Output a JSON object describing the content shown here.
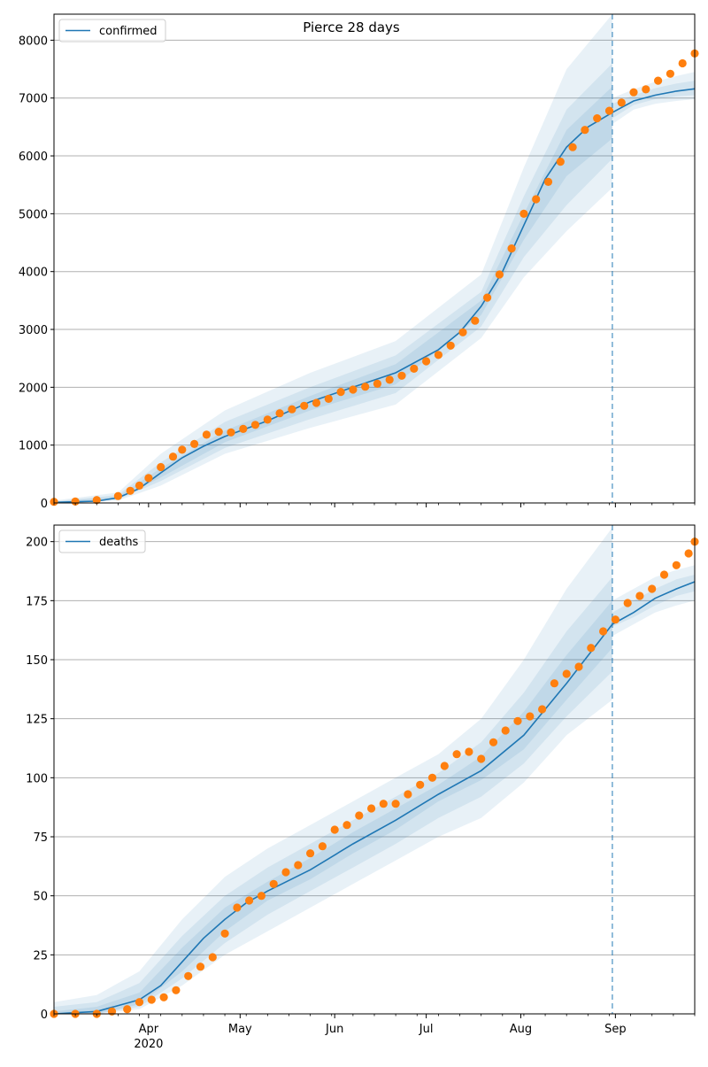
{
  "title": "Pierce 28 days",
  "colors": {
    "model": "#1f77b4",
    "observed": "#ff7f0e",
    "band": "#1f77b4",
    "grid": "#b0b0b0",
    "forecast_line": "#1f77b4"
  },
  "x_axis": {
    "ticks": [
      {
        "label": "Apr",
        "day": 31
      },
      {
        "label": "May",
        "day": 61
      },
      {
        "label": "Jun",
        "day": 92
      },
      {
        "label": "Jul",
        "day": 122
      },
      {
        "label": "Aug",
        "day": 153
      },
      {
        "label": "Sep",
        "day": 184
      }
    ],
    "year_label": "2020",
    "range": [
      "2020-03-01",
      "2020-09-27"
    ],
    "forecast_start": "2020-08-31"
  },
  "chart_data": [
    {
      "type": "line",
      "panel": "top",
      "title": "Pierce 28 days",
      "legend": "confirmed",
      "legend_position": "top-left",
      "grid": "horizontal",
      "ylim": [
        0,
        8450
      ],
      "yticks": [
        0,
        1000,
        2000,
        3000,
        4000,
        5000,
        6000,
        7000,
        8000
      ],
      "model_series": {
        "name": "confirmed",
        "x": [
          "2020-03-01",
          "2020-03-15",
          "2020-03-22",
          "2020-03-29",
          "2020-04-05",
          "2020-04-12",
          "2020-04-19",
          "2020-04-26",
          "2020-05-10",
          "2020-05-24",
          "2020-06-07",
          "2020-06-21",
          "2020-07-05",
          "2020-07-12",
          "2020-07-19",
          "2020-07-26",
          "2020-08-02",
          "2020-08-09",
          "2020-08-16",
          "2020-08-23",
          "2020-08-31",
          "2020-09-07",
          "2020-09-14",
          "2020-09-21",
          "2020-09-27"
        ],
        "values": [
          10,
          30,
          90,
          250,
          520,
          780,
          980,
          1150,
          1420,
          1750,
          2000,
          2250,
          2650,
          2950,
          3400,
          4000,
          4800,
          5600,
          6150,
          6500,
          6750,
          6950,
          7050,
          7120,
          7160
        ]
      },
      "bands": [
        {
          "x": [
            "2020-03-01",
            "2020-03-22",
            "2020-04-05",
            "2020-04-26",
            "2020-05-24",
            "2020-06-21",
            "2020-07-19",
            "2020-08-02",
            "2020-08-16",
            "2020-08-31"
          ],
          "upper": [
            40,
            180,
            850,
            1600,
            2250,
            2800,
            3950,
            5800,
            7500,
            8450
          ],
          "lower": [
            0,
            40,
            300,
            850,
            1300,
            1700,
            2850,
            3900,
            4700,
            5450
          ]
        },
        {
          "x": [
            "2020-03-01",
            "2020-03-22",
            "2020-04-05",
            "2020-04-26",
            "2020-05-24",
            "2020-06-21",
            "2020-07-19",
            "2020-08-02",
            "2020-08-16",
            "2020-08-31"
          ],
          "upper": [
            25,
            140,
            700,
            1400,
            2000,
            2550,
            3650,
            5300,
            6800,
            7600
          ],
          "lower": [
            0,
            60,
            380,
            950,
            1450,
            1900,
            3050,
            4250,
            5150,
            5950
          ]
        },
        {
          "x": [
            "2020-03-01",
            "2020-03-22",
            "2020-04-05",
            "2020-04-26",
            "2020-05-24",
            "2020-06-21",
            "2020-07-19",
            "2020-08-02",
            "2020-08-16",
            "2020-08-31"
          ],
          "upper": [
            15,
            110,
            600,
            1250,
            1850,
            2400,
            3500,
            5000,
            6450,
            7200
          ],
          "lower": [
            0,
            75,
            440,
            1050,
            1600,
            2050,
            3250,
            4550,
            5650,
            6300
          ]
        },
        {
          "x": [
            "2020-08-31",
            "2020-09-07",
            "2020-09-14",
            "2020-09-21",
            "2020-09-27"
          ],
          "upper": [
            7000,
            7150,
            7280,
            7380,
            7450
          ],
          "lower": [
            6550,
            6800,
            6900,
            6950,
            6980
          ]
        },
        {
          "x": [
            "2020-08-31",
            "2020-09-07",
            "2020-09-14",
            "2020-09-21",
            "2020-09-27"
          ],
          "upper": [
            6900,
            7050,
            7170,
            7250,
            7300
          ],
          "lower": [
            6650,
            6880,
            6980,
            7030,
            7050
          ]
        }
      ],
      "observed": {
        "x": [
          "2020-03-01",
          "2020-03-08",
          "2020-03-15",
          "2020-03-22",
          "2020-03-26",
          "2020-03-29",
          "2020-04-01",
          "2020-04-05",
          "2020-04-09",
          "2020-04-12",
          "2020-04-16",
          "2020-04-20",
          "2020-04-24",
          "2020-04-28",
          "2020-05-02",
          "2020-05-06",
          "2020-05-10",
          "2020-05-14",
          "2020-05-18",
          "2020-05-22",
          "2020-05-26",
          "2020-05-30",
          "2020-06-03",
          "2020-06-07",
          "2020-06-11",
          "2020-06-15",
          "2020-06-19",
          "2020-06-23",
          "2020-06-27",
          "2020-07-01",
          "2020-07-05",
          "2020-07-09",
          "2020-07-13",
          "2020-07-17",
          "2020-07-21",
          "2020-07-25",
          "2020-07-29",
          "2020-08-02",
          "2020-08-06",
          "2020-08-10",
          "2020-08-14",
          "2020-08-18",
          "2020-08-22",
          "2020-08-26",
          "2020-08-30",
          "2020-09-03",
          "2020-09-07",
          "2020-09-11",
          "2020-09-15",
          "2020-09-19",
          "2020-09-23",
          "2020-09-27"
        ],
        "values": [
          20,
          25,
          50,
          120,
          210,
          300,
          430,
          620,
          800,
          920,
          1020,
          1180,
          1230,
          1220,
          1280,
          1350,
          1440,
          1550,
          1620,
          1680,
          1730,
          1800,
          1920,
          1960,
          2010,
          2060,
          2130,
          2200,
          2320,
          2450,
          2560,
          2720,
          2950,
          3150,
          3550,
          3950,
          4400,
          5000,
          5250,
          5550,
          5900,
          6150,
          6450,
          6650,
          6780,
          6920,
          7100,
          7150,
          7300,
          7420,
          7600,
          7770
        ]
      }
    },
    {
      "type": "line",
      "panel": "bottom",
      "legend": "deaths",
      "legend_position": "top-left",
      "grid": "horizontal",
      "ylim": [
        0,
        207
      ],
      "yticks": [
        0,
        25,
        50,
        75,
        100,
        125,
        150,
        175,
        200
      ],
      "model_series": {
        "name": "deaths",
        "x": [
          "2020-03-01",
          "2020-03-15",
          "2020-03-29",
          "2020-04-05",
          "2020-04-12",
          "2020-04-19",
          "2020-04-26",
          "2020-05-03",
          "2020-05-10",
          "2020-05-24",
          "2020-06-07",
          "2020-06-21",
          "2020-07-05",
          "2020-07-19",
          "2020-08-02",
          "2020-08-16",
          "2020-08-31",
          "2020-09-07",
          "2020-09-14",
          "2020-09-21",
          "2020-09-27"
        ],
        "values": [
          0,
          1,
          6,
          12,
          22,
          32,
          40,
          47,
          52,
          61,
          72,
          82,
          93,
          103,
          118,
          140,
          165,
          170,
          176,
          180,
          183
        ]
      },
      "bands": [
        {
          "x": [
            "2020-03-01",
            "2020-03-15",
            "2020-03-29",
            "2020-04-12",
            "2020-04-26",
            "2020-05-10",
            "2020-05-24",
            "2020-06-07",
            "2020-06-21",
            "2020-07-05",
            "2020-07-19",
            "2020-08-02",
            "2020-08-16",
            "2020-08-31"
          ],
          "upper": [
            5,
            8,
            18,
            40,
            58,
            70,
            80,
            90,
            100,
            110,
            125,
            150,
            180,
            206
          ],
          "lower": [
            0,
            0,
            2,
            12,
            25,
            35,
            45,
            55,
            65,
            75,
            83,
            98,
            118,
            133
          ]
        },
        {
          "x": [
            "2020-03-01",
            "2020-03-15",
            "2020-03-29",
            "2020-04-12",
            "2020-04-26",
            "2020-05-10",
            "2020-05-24",
            "2020-06-07",
            "2020-06-21",
            "2020-07-05",
            "2020-07-19",
            "2020-08-02",
            "2020-08-16",
            "2020-08-31"
          ],
          "upper": [
            3,
            5,
            13,
            33,
            50,
            62,
            72,
            82,
            92,
            102,
            115,
            136,
            162,
            185
          ],
          "lower": [
            0,
            0,
            3,
            15,
            30,
            42,
            52,
            62,
            72,
            83,
            92,
            106,
            126,
            145
          ]
        },
        {
          "x": [
            "2020-03-01",
            "2020-03-15",
            "2020-03-29",
            "2020-04-12",
            "2020-04-26",
            "2020-05-10",
            "2020-05-24",
            "2020-06-07",
            "2020-06-21",
            "2020-07-05",
            "2020-07-19",
            "2020-08-02",
            "2020-08-16",
            "2020-08-31"
          ],
          "upper": [
            1,
            3,
            9,
            28,
            45,
            56,
            66,
            77,
            87,
            97,
            109,
            128,
            152,
            175
          ],
          "lower": [
            0,
            0,
            4,
            18,
            35,
            48,
            57,
            68,
            78,
            90,
            99,
            112,
            133,
            155
          ]
        },
        {
          "x": [
            "2020-08-31",
            "2020-09-07",
            "2020-09-14",
            "2020-09-21",
            "2020-09-27"
          ],
          "upper": [
            175,
            180,
            185,
            188,
            190
          ],
          "lower": [
            160,
            165,
            170,
            173,
            175
          ]
        },
        {
          "x": [
            "2020-08-31",
            "2020-09-07",
            "2020-09-14",
            "2020-09-21",
            "2020-09-27"
          ],
          "upper": [
            170,
            175,
            180,
            184,
            186
          ],
          "lower": [
            164,
            168,
            173,
            177,
            179
          ]
        }
      ],
      "observed": {
        "x": [
          "2020-03-01",
          "2020-03-08",
          "2020-03-15",
          "2020-03-20",
          "2020-03-25",
          "2020-03-29",
          "2020-04-02",
          "2020-04-06",
          "2020-04-10",
          "2020-04-14",
          "2020-04-18",
          "2020-04-22",
          "2020-04-26",
          "2020-04-30",
          "2020-05-04",
          "2020-05-08",
          "2020-05-12",
          "2020-05-16",
          "2020-05-20",
          "2020-05-24",
          "2020-05-28",
          "2020-06-01",
          "2020-06-05",
          "2020-06-09",
          "2020-06-13",
          "2020-06-17",
          "2020-06-21",
          "2020-06-25",
          "2020-06-29",
          "2020-07-03",
          "2020-07-07",
          "2020-07-11",
          "2020-07-15",
          "2020-07-19",
          "2020-07-23",
          "2020-07-27",
          "2020-07-31",
          "2020-08-04",
          "2020-08-08",
          "2020-08-12",
          "2020-08-16",
          "2020-08-20",
          "2020-08-24",
          "2020-08-28",
          "2020-09-01",
          "2020-09-05",
          "2020-09-09",
          "2020-09-13",
          "2020-09-17",
          "2020-09-21",
          "2020-09-25",
          "2020-09-27"
        ],
        "values": [
          0,
          0,
          0,
          1,
          2,
          5,
          6,
          7,
          10,
          16,
          20,
          24,
          34,
          45,
          48,
          50,
          55,
          60,
          63,
          68,
          71,
          78,
          80,
          84,
          87,
          89,
          89,
          93,
          97,
          100,
          105,
          110,
          111,
          108,
          115,
          120,
          124,
          126,
          129,
          140,
          144,
          147,
          155,
          162,
          167,
          174,
          177,
          180,
          186,
          190,
          195,
          200
        ]
      }
    }
  ]
}
